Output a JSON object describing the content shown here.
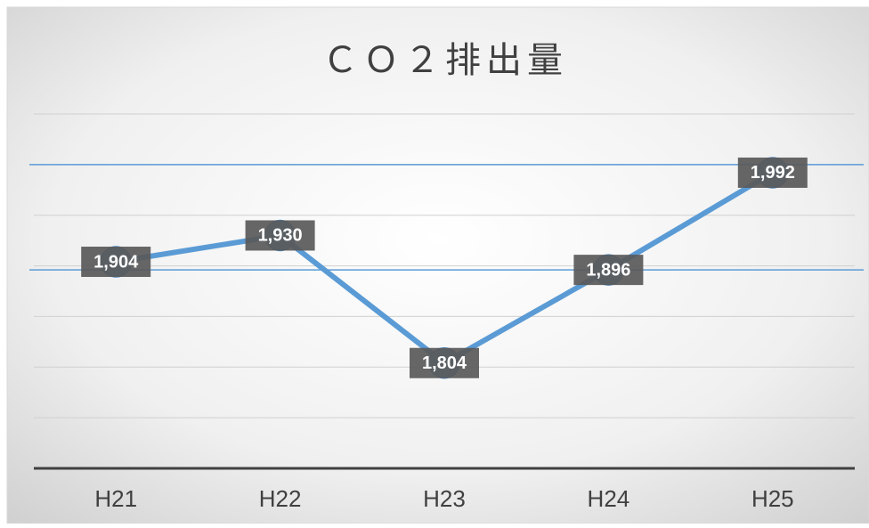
{
  "chart_data": {
    "type": "line",
    "title": "ＣＯ２排出量",
    "categories": [
      "H21",
      "H22",
      "H23",
      "H24",
      "H25"
    ],
    "series": [
      {
        "name": "CO2",
        "color": "#5b9bd5",
        "values": [
          1904,
          1930,
          1804,
          1896,
          1992
        ],
        "value_labels": [
          "1,904",
          "1,930",
          "1,804",
          "1,896",
          "1,992"
        ]
      }
    ],
    "ylim": [
      1700,
      2050
    ],
    "yticks": [
      1700,
      1750,
      1800,
      1850,
      1900,
      1950,
      2000,
      2050
    ],
    "grid": true,
    "reference_lines": [
      2000,
      1896
    ]
  }
}
